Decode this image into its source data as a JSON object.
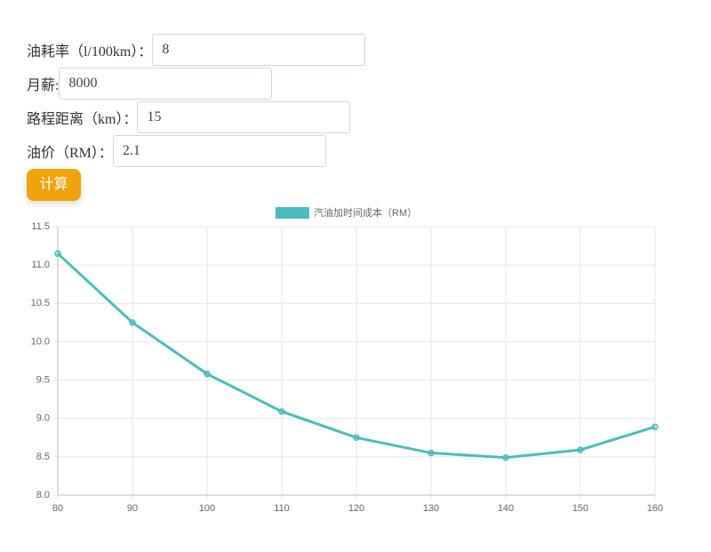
{
  "form": {
    "fields": [
      {
        "label": "油耗率（l/100km）：",
        "value": "8"
      },
      {
        "label": "月薪:",
        "value": "8000"
      },
      {
        "label": "路程距离（km）：",
        "value": "15"
      },
      {
        "label": "油价（RM）：",
        "value": "2.1"
      }
    ],
    "button": "计算"
  },
  "chart_data": {
    "type": "line",
    "x": [
      80,
      90,
      100,
      110,
      120,
      130,
      140,
      150,
      160
    ],
    "series": [
      {
        "name": "汽油加时间成本（RM）",
        "color": "#4bbdbd",
        "values": [
          11.15,
          10.25,
          9.58,
          9.09,
          8.75,
          8.55,
          8.49,
          8.59,
          8.89
        ]
      }
    ],
    "xlim": [
      80,
      160
    ],
    "xticks": [
      80,
      90,
      100,
      110,
      120,
      130,
      140,
      150,
      160
    ],
    "ylim": [
      8,
      11.5
    ],
    "yticks": [
      {
        "value": 8,
        "label": "8.0"
      },
      8.5,
      {
        "value": 9,
        "label": "9.0"
      },
      9.5,
      {
        "value": 10,
        "label": "10.0"
      },
      10.5,
      {
        "value": 11,
        "label": "11.0"
      },
      11.5
    ],
    "grid": true,
    "legend": "top"
  }
}
